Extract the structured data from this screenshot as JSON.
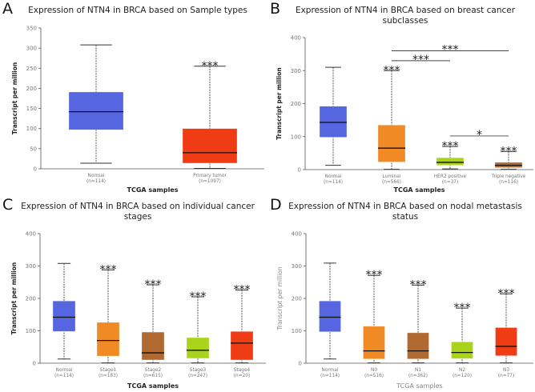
{
  "chart_data": [
    {
      "type": "box",
      "panel_letter": "A",
      "title": [
        "Expression of NTN4 in BRCA based on Sample types"
      ],
      "xlabel": "TCGA samples",
      "ylabel": "Transcript per million",
      "ylim": [
        0,
        350
      ],
      "yticks": [
        0,
        50,
        100,
        150,
        200,
        250,
        300,
        350
      ],
      "groups": [
        {
          "label": "Normal",
          "n": "(n=114)",
          "min": 14,
          "q1": 97,
          "median": 142,
          "q3": 191,
          "max": 308,
          "color": "#5566e0",
          "sig": ""
        },
        {
          "label": "Primary tumor",
          "n": "(n=1097)",
          "min": 1,
          "q1": 14,
          "median": 40,
          "q3": 100,
          "max": 255,
          "color": "#f03c14",
          "sig": "***"
        }
      ],
      "brackets": []
    },
    {
      "type": "box",
      "panel_letter": "B",
      "title": [
        "Expression of NTN4 in BRCA based on breast cancer",
        "subclasses"
      ],
      "xlabel": "TCGA samples",
      "ylabel": "Transcript per million",
      "ylim": [
        0,
        400
      ],
      "yticks": [
        0,
        100,
        200,
        300,
        400
      ],
      "groups": [
        {
          "label": "Normal",
          "n": "(n=114)",
          "min": 13,
          "q1": 98,
          "median": 143,
          "q3": 192,
          "max": 310,
          "color": "#5566e0",
          "sig": ""
        },
        {
          "label": "Luminal",
          "n": "(n=566)",
          "min": 1,
          "q1": 23,
          "median": 65,
          "q3": 135,
          "max": 300,
          "color": "#f08a24",
          "sig": "***"
        },
        {
          "label": "HER2 positive",
          "n": "(n=37)",
          "min": 2,
          "q1": 13,
          "median": 22,
          "q3": 36,
          "max": 70,
          "color": "#aad41c",
          "sig": "***"
        },
        {
          "label": "Triple negative",
          "n": "(n=116)",
          "min": 1,
          "q1": 6,
          "median": 13,
          "q3": 22,
          "max": 55,
          "color": "#b06a30",
          "sig": "***"
        }
      ],
      "brackets": [
        {
          "from": 1,
          "to": 2,
          "y": 330,
          "sig": "***"
        },
        {
          "from": 1,
          "to": 3,
          "y": 360,
          "sig": "***"
        },
        {
          "from": 2,
          "to": 3,
          "y": 102,
          "sig": "*"
        }
      ]
    },
    {
      "type": "box",
      "panel_letter": "C",
      "title": [
        "Expression of NTN4 in BRCA based on individual cancer",
        "stages"
      ],
      "xlabel": "TCGA samples",
      "ylabel": "Transcript per million",
      "ylim": [
        0,
        400
      ],
      "yticks": [
        0,
        100,
        200,
        300,
        400
      ],
      "groups": [
        {
          "label": "Normal",
          "n": "(n=114)",
          "min": 13,
          "q1": 98,
          "median": 142,
          "q3": 192,
          "max": 308,
          "color": "#5566e0",
          "sig": ""
        },
        {
          "label": "Stage1",
          "n": "(n=183)",
          "min": 1,
          "q1": 22,
          "median": 70,
          "q3": 126,
          "max": 288,
          "color": "#f08a24",
          "sig": "***"
        },
        {
          "label": "Stage2",
          "n": "(n=615)",
          "min": 1,
          "q1": 10,
          "median": 32,
          "q3": 96,
          "max": 242,
          "color": "#b06a30",
          "sig": "***"
        },
        {
          "label": "Stage3",
          "n": "(n=247)",
          "min": 1,
          "q1": 15,
          "median": 40,
          "q3": 79,
          "max": 205,
          "color": "#aad41c",
          "sig": "***"
        },
        {
          "label": "Stage4",
          "n": "(n=20)",
          "min": 1,
          "q1": 10,
          "median": 62,
          "q3": 98,
          "max": 226,
          "color": "#f03c14",
          "sig": "***"
        }
      ],
      "brackets": []
    },
    {
      "type": "box",
      "panel_letter": "D",
      "title": [
        "Expression of NTN4 in BRCA based on nodal metastasis",
        "status"
      ],
      "xlabel": "TCGA samples",
      "ylabel": "Transcript per million",
      "ylim": [
        0,
        400
      ],
      "yticks": [
        0,
        100,
        200,
        300,
        400
      ],
      "groups": [
        {
          "label": "Normal",
          "n": "(n=114)",
          "min": 13,
          "q1": 97,
          "median": 142,
          "q3": 192,
          "max": 309,
          "color": "#5566e0",
          "sig": ""
        },
        {
          "label": "N0",
          "n": "(n=516)",
          "min": 1,
          "q1": 13,
          "median": 38,
          "q3": 114,
          "max": 271,
          "color": "#f08a24",
          "sig": "***"
        },
        {
          "label": "N1",
          "n": "(n=362)",
          "min": 1,
          "q1": 13,
          "median": 38,
          "q3": 94,
          "max": 241,
          "color": "#b06a30",
          "sig": "***"
        },
        {
          "label": "N2",
          "n": "(n=120)",
          "min": 1,
          "q1": 14,
          "median": 33,
          "q3": 66,
          "max": 170,
          "color": "#aad41c",
          "sig": "***"
        },
        {
          "label": "N3",
          "n": "(n=77)",
          "min": 1,
          "q1": 23,
          "median": 52,
          "q3": 110,
          "max": 214,
          "color": "#f03c14",
          "sig": "***"
        }
      ],
      "brackets": []
    }
  ]
}
